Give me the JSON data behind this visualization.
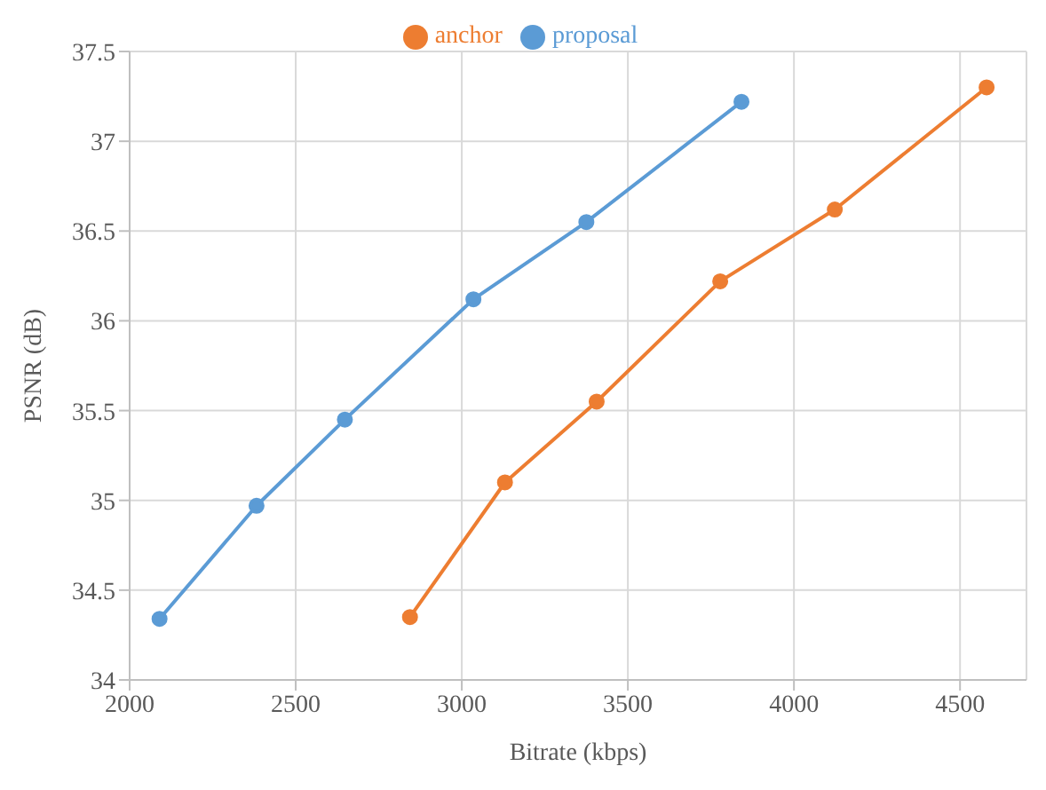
{
  "chart_data": {
    "type": "line",
    "xlabel": "Bitrate (kbps)",
    "ylabel": "PSNR (dB)",
    "series": [
      {
        "name": "proposal",
        "color": "#5b9bd5",
        "x": [
          2090,
          2382,
          2648,
          3035,
          3375,
          3842
        ],
        "values": [
          34.34,
          34.97,
          35.45,
          36.12,
          36.55,
          37.22
        ]
      },
      {
        "name": "anchor",
        "color": "#ed7d31",
        "x": [
          2844,
          3130,
          3406,
          3778,
          4123,
          4580
        ],
        "values": [
          34.35,
          35.1,
          35.55,
          36.22,
          36.62,
          37.3
        ]
      }
    ],
    "xlim": [
      2000,
      4700
    ],
    "xticks": [
      2000,
      2500,
      3000,
      3500,
      4000,
      4500
    ],
    "ylim": [
      34,
      37.5
    ],
    "yticks": [
      34,
      34.5,
      35,
      35.5,
      36,
      36.5,
      37,
      37.5
    ],
    "grid": true,
    "legend": "top",
    "marker": "circle",
    "line_style": "solid"
  }
}
